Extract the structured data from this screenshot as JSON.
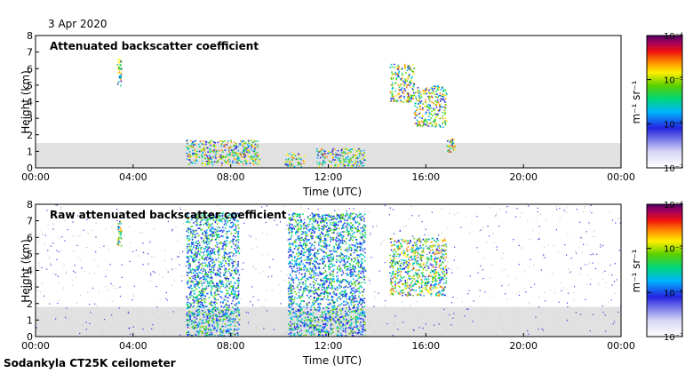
{
  "date_label": "3 Apr 2020",
  "footer_label": "Sodankyla CT25K ceilometer",
  "chart_data": [
    {
      "type": "heatmap",
      "title": "Attenuated backscatter coefficient",
      "xlabel": "Time (UTC)",
      "ylabel": "Height (km)",
      "xlim": [
        "00:00",
        "24:00"
      ],
      "xticks": [
        "00:00",
        "04:00",
        "08:00",
        "12:00",
        "16:00",
        "20:00",
        "00:00"
      ],
      "ylim": [
        0,
        8
      ],
      "yticks": [
        "0",
        "1",
        "2",
        "3",
        "4",
        "5",
        "6",
        "7",
        "8"
      ],
      "colorbar": {
        "label": "m⁻¹ sr⁻¹",
        "scale": "log",
        "range": [
          1e-07,
          0.0001
        ],
        "ticks": [
          "10⁻⁷",
          "10⁻⁶",
          "10⁻⁵",
          "10⁻⁴"
        ]
      },
      "features": [
        {
          "type": "cloud",
          "time_range": [
            "03:20",
            "03:30"
          ],
          "height_range": [
            5.0,
            6.8
          ]
        },
        {
          "type": "cloud",
          "time_range": [
            "06:10",
            "09:10"
          ],
          "height_range": [
            0.2,
            1.7
          ]
        },
        {
          "type": "cloud",
          "time_range": [
            "10:10",
            "11:00"
          ],
          "height_range": [
            0.1,
            0.9
          ]
        },
        {
          "type": "cloud",
          "time_range": [
            "11:30",
            "13:30"
          ],
          "height_range": [
            0.1,
            1.2
          ]
        },
        {
          "type": "cloud",
          "time_range": [
            "14:30",
            "15:30"
          ],
          "height_range": [
            4.0,
            6.3
          ]
        },
        {
          "type": "cloud",
          "time_range": [
            "15:30",
            "16:50"
          ],
          "height_range": [
            2.5,
            5.0
          ]
        },
        {
          "type": "cloud",
          "time_range": [
            "16:50",
            "17:10"
          ],
          "height_range": [
            1.0,
            1.8
          ]
        }
      ]
    },
    {
      "type": "heatmap",
      "title": "Raw attenuated backscatter coefficient",
      "xlabel": "Time (UTC)",
      "ylabel": "Height (km)",
      "xlim": [
        "00:00",
        "24:00"
      ],
      "xticks": [
        "00:00",
        "04:00",
        "08:00",
        "12:00",
        "16:00",
        "20:00",
        "00:00"
      ],
      "ylim": [
        0,
        8
      ],
      "yticks": [
        "0",
        "1",
        "2",
        "3",
        "4",
        "5",
        "6",
        "7",
        "8"
      ],
      "colorbar": {
        "label": "m⁻¹ sr⁻¹",
        "scale": "log",
        "range": [
          1e-07,
          0.0001
        ],
        "ticks": [
          "10⁻⁷",
          "10⁻⁶",
          "10⁻⁵",
          "10⁻⁴"
        ]
      },
      "features": [
        {
          "type": "cloud",
          "time_range": [
            "03:20",
            "03:30"
          ],
          "height_range": [
            5.5,
            7.0
          ]
        },
        {
          "type": "precipitation",
          "time_range": [
            "06:10",
            "08:20"
          ],
          "height_range": [
            0,
            7.5
          ]
        },
        {
          "type": "precipitation",
          "time_range": [
            "10:20",
            "13:30"
          ],
          "height_range": [
            0,
            7.5
          ]
        },
        {
          "type": "cloud",
          "time_range": [
            "14:30",
            "16:50"
          ],
          "height_range": [
            2.5,
            6.0
          ]
        }
      ]
    }
  ]
}
